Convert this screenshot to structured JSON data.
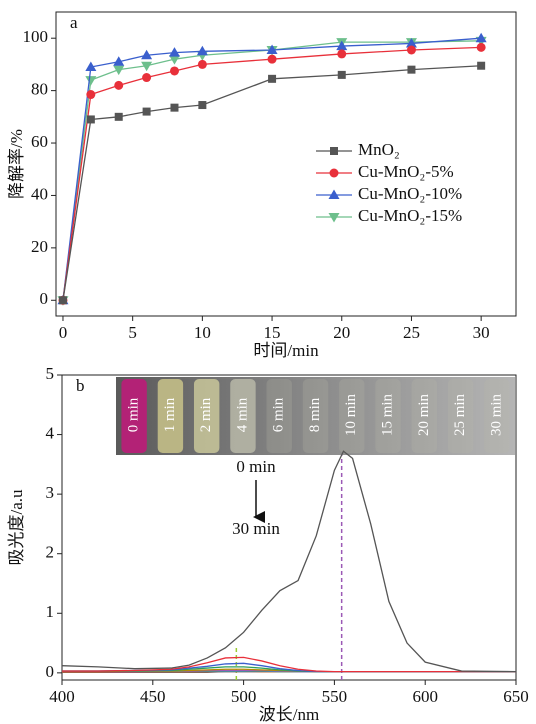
{
  "chart_data": [
    {
      "type": "line",
      "label": "a",
      "x_label": "时间/min",
      "y_label": "降解率/%",
      "x": [
        0,
        2,
        4,
        6,
        8,
        10,
        15,
        20,
        25,
        30
      ],
      "series": [
        {
          "name": "MnO₂",
          "color": "#555555",
          "marker": "square",
          "values": [
            0,
            69,
            70,
            72,
            73.5,
            74.5,
            84.5,
            86,
            88,
            89.5
          ]
        },
        {
          "name": "Cu-MnO₂-5%",
          "color": "#e8303a",
          "marker": "circle",
          "values": [
            0,
            78.5,
            82,
            85,
            87.5,
            90,
            92,
            94,
            95.5,
            96.5
          ]
        },
        {
          "name": "Cu-MnO₂-10%",
          "color": "#3a5fcd",
          "marker": "triangle-up",
          "values": [
            0,
            89,
            91,
            93.5,
            94.5,
            95,
            95.5,
            97,
            98,
            100
          ]
        },
        {
          "name": "Cu-MnO₂-15%",
          "color": "#6dbf8c",
          "marker": "triangle-down",
          "values": [
            0,
            84,
            88,
            89.5,
            92,
            93.5,
            95.5,
            98.5,
            98.5,
            99
          ]
        }
      ],
      "xlim": [
        -0.5,
        32.5
      ],
      "ylim": [
        -6,
        110
      ],
      "xticks": [
        0,
        5,
        10,
        15,
        20,
        25,
        30
      ],
      "yticks": [
        0,
        20,
        40,
        60,
        80,
        100
      ],
      "legend": "center right"
    },
    {
      "type": "line",
      "label": "b",
      "x_label": "波长/nm",
      "y_label": "吸光度/a.u",
      "x": [
        400,
        420,
        440,
        460,
        470,
        480,
        490,
        500,
        510,
        520,
        530,
        540,
        550,
        555,
        560,
        570,
        580,
        590,
        600,
        620,
        650
      ],
      "series": [
        {
          "name": "0 min",
          "color": "#555555",
          "values": [
            0.12,
            0.1,
            0.07,
            0.08,
            0.13,
            0.25,
            0.42,
            0.68,
            1.05,
            1.38,
            1.55,
            2.3,
            3.4,
            3.72,
            3.6,
            2.5,
            1.2,
            0.5,
            0.18,
            0.03,
            0.02
          ]
        },
        {
          "name": "1 min",
          "color": "#e8303a",
          "values": [
            0.03,
            0.03,
            0.04,
            0.06,
            0.1,
            0.17,
            0.25,
            0.26,
            0.2,
            0.12,
            0.06,
            0.03,
            0.02,
            0.02,
            0.02,
            0.02,
            0.02,
            0.02,
            0.02,
            0.02,
            0.02
          ]
        },
        {
          "name": "2 min",
          "color": "#3a5fcd",
          "values": [
            0.03,
            0.03,
            0.04,
            0.05,
            0.08,
            0.11,
            0.15,
            0.16,
            0.12,
            0.07,
            0.04,
            0.02,
            0.02,
            0.02,
            0.02,
            0.02,
            0.02,
            0.02,
            0.02,
            0.02,
            0.02
          ]
        },
        {
          "name": "4 min",
          "color": "#2e9e5b",
          "values": [
            0.03,
            0.03,
            0.03,
            0.04,
            0.06,
            0.08,
            0.1,
            0.1,
            0.08,
            0.05,
            0.03,
            0.02,
            0.02,
            0.02,
            0.02,
            0.02,
            0.02,
            0.02,
            0.02,
            0.02,
            0.02
          ]
        },
        {
          "name": "6 min",
          "color": "#b58b00",
          "values": [
            0.02,
            0.02,
            0.03,
            0.03,
            0.04,
            0.05,
            0.06,
            0.06,
            0.05,
            0.04,
            0.03,
            0.02,
            0.02,
            0.02,
            0.02,
            0.02,
            0.02,
            0.02,
            0.02,
            0.02,
            0.02
          ]
        },
        {
          "name": "8 min",
          "color": "#9b59b6",
          "values": [
            0.02,
            0.02,
            0.02,
            0.03,
            0.03,
            0.04,
            0.04,
            0.04,
            0.04,
            0.03,
            0.02,
            0.02,
            0.02,
            0.02,
            0.02,
            0.02,
            0.02,
            0.02,
            0.02,
            0.02,
            0.02
          ]
        },
        {
          "name": "10 min",
          "color": "#17a2b8",
          "values": [
            0.02,
            0.02,
            0.02,
            0.02,
            0.03,
            0.03,
            0.03,
            0.03,
            0.03,
            0.02,
            0.02,
            0.02,
            0.02,
            0.02,
            0.02,
            0.02,
            0.02,
            0.02,
            0.02,
            0.02,
            0.02
          ]
        },
        {
          "name": "15 min",
          "color": "#d35400",
          "values": [
            0.02,
            0.02,
            0.02,
            0.02,
            0.02,
            0.02,
            0.03,
            0.03,
            0.02,
            0.02,
            0.02,
            0.02,
            0.02,
            0.02,
            0.02,
            0.02,
            0.02,
            0.02,
            0.02,
            0.02,
            0.02
          ]
        },
        {
          "name": "20 min",
          "color": "#7f8c8d",
          "values": [
            0.02,
            0.02,
            0.02,
            0.02,
            0.02,
            0.02,
            0.02,
            0.02,
            0.02,
            0.02,
            0.02,
            0.02,
            0.02,
            0.02,
            0.02,
            0.02,
            0.02,
            0.02,
            0.02,
            0.02,
            0.02
          ]
        },
        {
          "name": "25 min",
          "color": "#c0392b",
          "values": [
            0.01,
            0.01,
            0.01,
            0.01,
            0.02,
            0.02,
            0.02,
            0.02,
            0.02,
            0.02,
            0.02,
            0.02,
            0.02,
            0.02,
            0.02,
            0.02,
            0.02,
            0.02,
            0.02,
            0.02,
            0.02
          ]
        },
        {
          "name": "30 min",
          "color": "#2c3e50",
          "values": [
            0.01,
            0.01,
            0.01,
            0.01,
            0.01,
            0.01,
            0.02,
            0.02,
            0.02,
            0.02,
            0.02,
            0.02,
            0.02,
            0.02,
            0.02,
            0.02,
            0.02,
            0.02,
            0.02,
            0.02,
            0.02
          ]
        }
      ],
      "xlim": [
        400,
        650
      ],
      "ylim": [
        -0.12,
        5
      ],
      "xticks": [
        400,
        450,
        500,
        550,
        600,
        650
      ],
      "yticks": [
        0,
        1,
        2,
        3,
        4,
        5
      ],
      "vlines": [
        {
          "x": 496,
          "color": "#9acd32"
        },
        {
          "x": 554,
          "color": "#9b59b6"
        }
      ],
      "annotations": [
        "0 min",
        "30 min"
      ]
    }
  ]
}
